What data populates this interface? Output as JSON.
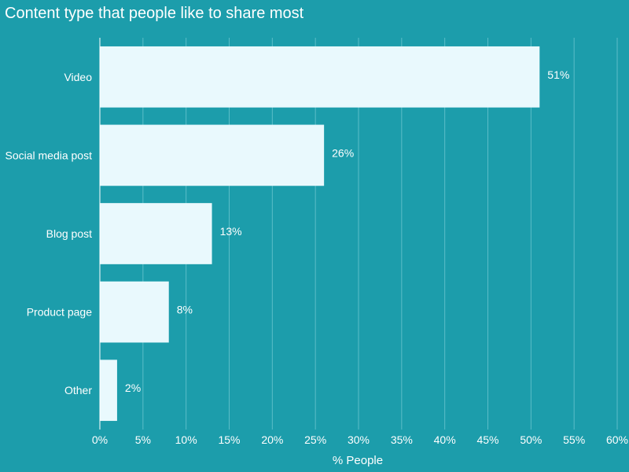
{
  "chart_data": {
    "type": "bar",
    "orientation": "horizontal",
    "title": "Content type that people like to share most",
    "categories": [
      "Video",
      "Social media post",
      "Blog post",
      "Product page",
      "Other"
    ],
    "values": [
      51,
      26,
      13,
      8,
      2
    ],
    "data_labels": [
      "51%",
      "26%",
      "13%",
      "8%",
      "2%"
    ],
    "xlabel": "% People",
    "ylabel": "",
    "xlim": [
      0,
      60
    ],
    "xticks": [
      0,
      5,
      10,
      15,
      20,
      25,
      30,
      35,
      40,
      45,
      50,
      55,
      60
    ],
    "xtick_labels": [
      "0%",
      "5%",
      "10%",
      "15%",
      "20%",
      "25%",
      "30%",
      "35%",
      "40%",
      "45%",
      "50%",
      "55%",
      "60%"
    ],
    "grid": true,
    "legend": "none"
  },
  "colors": {
    "background": "#1c9dab",
    "bar": "#e9f9fd",
    "text": "#ffffff",
    "grid": "#5cbdc8"
  }
}
